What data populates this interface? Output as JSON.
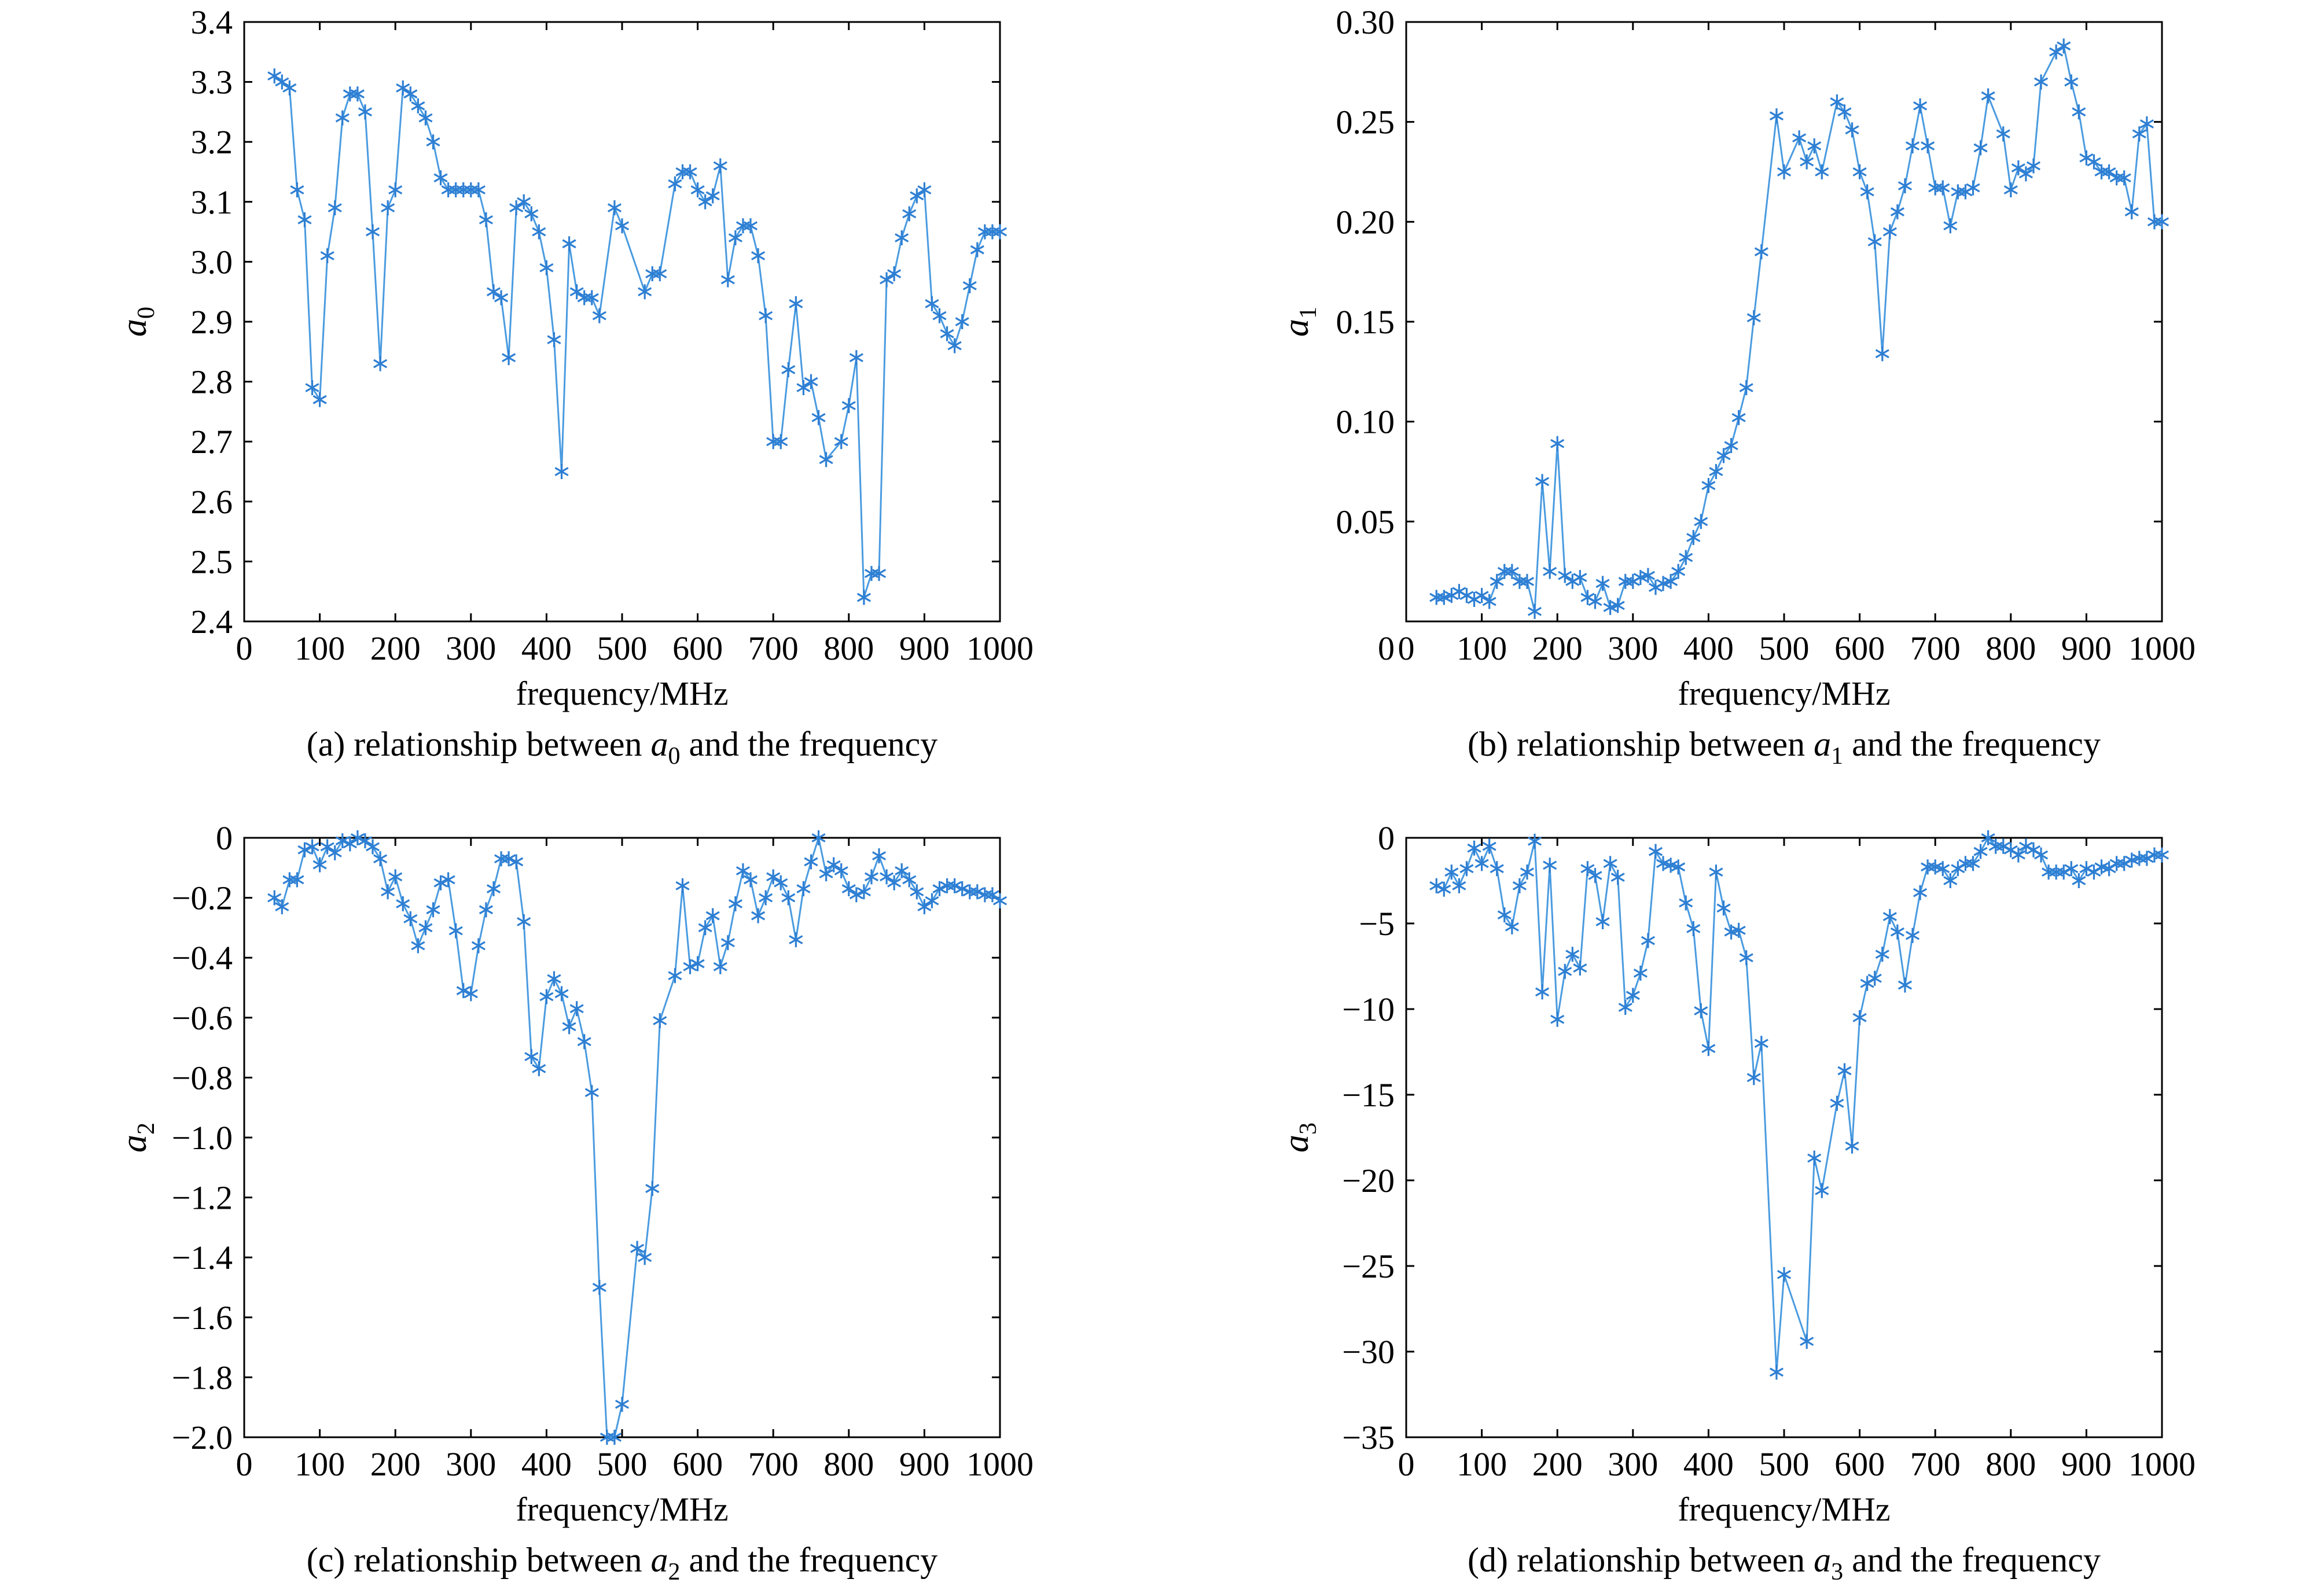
{
  "chart_data": [
    {
      "type": "line",
      "id": "a",
      "ylabel": {
        "base": "a",
        "sub": "0"
      },
      "xlabel": "frequency/MHz",
      "caption": {
        "pre": "(a) relationship between ",
        "sym": "a",
        "sub": "0",
        "post": " and the frequency"
      },
      "xlim": [
        0,
        1000
      ],
      "ylim": [
        2.4,
        3.4
      ],
      "xticks": [
        0,
        100,
        200,
        300,
        400,
        500,
        600,
        700,
        800,
        900,
        1000
      ],
      "yticks": [
        2.4,
        2.5,
        2.6,
        2.7,
        2.8,
        2.9,
        3.0,
        3.1,
        3.2,
        3.3,
        3.4
      ],
      "ytick_labels": [
        "2.4",
        "2.5",
        "2.6",
        "2.7",
        "2.8",
        "2.9",
        "3.0",
        "3.1",
        "3.2",
        "3.3",
        "3.4"
      ],
      "marker": "asterisk",
      "color": "#4a9be0",
      "x": [
        40,
        50,
        60,
        70,
        80,
        90,
        100,
        110,
        120,
        130,
        140,
        150,
        160,
        170,
        180,
        190,
        200,
        210,
        220,
        230,
        240,
        250,
        260,
        270,
        280,
        290,
        300,
        310,
        320,
        330,
        340,
        350,
        360,
        370,
        380,
        390,
        400,
        410,
        420,
        430,
        440,
        450,
        460,
        470,
        490,
        500,
        530,
        540,
        550,
        570,
        580,
        590,
        600,
        610,
        620,
        630,
        640,
        650,
        660,
        670,
        680,
        690,
        700,
        710,
        720,
        730,
        740,
        750,
        760,
        770,
        790,
        800,
        810,
        820,
        830,
        840,
        850,
        860,
        870,
        880,
        890,
        900,
        910,
        920,
        930,
        940,
        950,
        960,
        970,
        980,
        990,
        1000
      ],
      "y": [
        3.31,
        3.3,
        3.29,
        3.12,
        3.07,
        2.79,
        2.77,
        3.01,
        3.09,
        3.24,
        3.28,
        3.28,
        3.25,
        3.05,
        2.83,
        3.09,
        3.12,
        3.29,
        3.28,
        3.26,
        3.24,
        3.2,
        3.14,
        3.12,
        3.12,
        3.12,
        3.12,
        3.12,
        3.07,
        2.95,
        2.94,
        2.84,
        3.09,
        3.1,
        3.08,
        3.05,
        2.99,
        2.87,
        2.65,
        3.03,
        2.95,
        2.94,
        2.94,
        2.91,
        3.09,
        3.06,
        2.95,
        2.98,
        2.98,
        3.13,
        3.15,
        3.15,
        3.12,
        3.1,
        3.11,
        3.16,
        2.97,
        3.04,
        3.06,
        3.06,
        3.01,
        2.91,
        2.7,
        2.7,
        2.82,
        2.93,
        2.79,
        2.8,
        2.74,
        2.67,
        2.7,
        2.76,
        2.84,
        2.44,
        2.48,
        2.48,
        2.97,
        2.98,
        3.04,
        3.08,
        3.11,
        3.12,
        2.93,
        2.91,
        2.88,
        2.86,
        2.9,
        2.96,
        3.02,
        3.05,
        3.05,
        3.05
      ]
    },
    {
      "type": "line",
      "id": "b",
      "ylabel": {
        "base": "a",
        "sub": "1"
      },
      "xlabel": "frequency/MHz",
      "caption": {
        "pre": "(b) relationship between ",
        "sym": "a",
        "sub": "1",
        "post": " and the frequency"
      },
      "xlim": [
        0,
        1000
      ],
      "ylim": [
        0,
        0.3
      ],
      "xticks": [
        0,
        100,
        200,
        300,
        400,
        500,
        600,
        700,
        800,
        900,
        1000
      ],
      "yticks": [
        0.05,
        0.1,
        0.15,
        0.2,
        0.25,
        0.3
      ],
      "ytick_labels": [
        "0.05",
        "0.10",
        "0.15",
        "0.20",
        "0.25",
        "0.30"
      ],
      "marker": "asterisk",
      "color": "#4a9be0",
      "x": [
        40,
        50,
        60,
        70,
        80,
        90,
        100,
        110,
        120,
        130,
        140,
        150,
        160,
        170,
        180,
        190,
        200,
        210,
        220,
        230,
        240,
        250,
        260,
        270,
        280,
        290,
        300,
        310,
        320,
        330,
        340,
        350,
        360,
        370,
        380,
        390,
        400,
        410,
        420,
        430,
        440,
        450,
        460,
        470,
        490,
        500,
        520,
        530,
        540,
        550,
        570,
        580,
        590,
        600,
        610,
        620,
        630,
        640,
        650,
        660,
        670,
        680,
        690,
        700,
        710,
        720,
        730,
        740,
        750,
        760,
        770,
        790,
        800,
        810,
        820,
        830,
        840,
        860,
        870,
        880,
        890,
        900,
        910,
        920,
        930,
        940,
        950,
        960,
        970,
        980,
        990,
        1000
      ],
      "y": [
        0.012,
        0.012,
        0.013,
        0.015,
        0.013,
        0.011,
        0.013,
        0.01,
        0.02,
        0.025,
        0.025,
        0.02,
        0.02,
        0.005,
        0.07,
        0.025,
        0.089,
        0.023,
        0.02,
        0.022,
        0.012,
        0.01,
        0.019,
        0.007,
        0.008,
        0.02,
        0.02,
        0.022,
        0.023,
        0.017,
        0.019,
        0.02,
        0.025,
        0.032,
        0.042,
        0.05,
        0.068,
        0.075,
        0.083,
        0.088,
        0.102,
        0.117,
        0.152,
        0.185,
        0.253,
        0.225,
        0.242,
        0.23,
        0.238,
        0.225,
        0.26,
        0.255,
        0.246,
        0.225,
        0.215,
        0.19,
        0.134,
        0.195,
        0.205,
        0.218,
        0.238,
        0.258,
        0.238,
        0.217,
        0.217,
        0.198,
        0.215,
        0.215,
        0.217,
        0.237,
        0.263,
        0.244,
        0.216,
        0.227,
        0.224,
        0.228,
        0.27,
        0.285,
        0.288,
        0.27,
        0.255,
        0.232,
        0.23,
        0.225,
        0.225,
        0.222,
        0.222,
        0.205,
        0.244,
        0.249,
        0.2,
        0.2
      ]
    },
    {
      "type": "line",
      "id": "c",
      "ylabel": {
        "base": "a",
        "sub": "2"
      },
      "xlabel": "frequency/MHz",
      "caption": {
        "pre": "(c) relationship between ",
        "sym": "a",
        "sub": "2",
        "post": " and the frequency"
      },
      "xlim": [
        0,
        1000
      ],
      "ylim": [
        -2.0,
        0
      ],
      "xticks": [
        0,
        100,
        200,
        300,
        400,
        500,
        600,
        700,
        800,
        900,
        1000
      ],
      "yticks": [
        -2.0,
        -1.8,
        -1.6,
        -1.4,
        -1.2,
        -1.0,
        -0.8,
        -0.6,
        -0.4,
        -0.2,
        0
      ],
      "ytick_labels": [
        "−2.0",
        "−1.8",
        "−1.6",
        "−1.4",
        "−1.2",
        "−1.0",
        "−0.8",
        "−0.6",
        "−0.4",
        "−0.2",
        "0"
      ],
      "marker": "asterisk",
      "color": "#4a9be0",
      "x": [
        40,
        50,
        60,
        70,
        80,
        90,
        100,
        110,
        120,
        130,
        140,
        150,
        160,
        170,
        180,
        190,
        200,
        210,
        220,
        230,
        240,
        250,
        260,
        270,
        280,
        290,
        300,
        310,
        320,
        330,
        340,
        350,
        360,
        370,
        380,
        390,
        400,
        410,
        420,
        430,
        440,
        450,
        460,
        470,
        480,
        490,
        500,
        520,
        530,
        540,
        550,
        570,
        580,
        590,
        600,
        610,
        620,
        630,
        640,
        650,
        660,
        670,
        680,
        690,
        700,
        710,
        720,
        730,
        740,
        750,
        760,
        770,
        780,
        790,
        800,
        810,
        820,
        830,
        840,
        850,
        860,
        870,
        880,
        890,
        900,
        910,
        920,
        930,
        940,
        950,
        960,
        970,
        980,
        990,
        1000
      ],
      "y": [
        -0.2,
        -0.23,
        -0.14,
        -0.14,
        -0.04,
        -0.03,
        -0.09,
        -0.03,
        -0.05,
        -0.01,
        -0.02,
        0,
        -0.01,
        -0.03,
        -0.07,
        -0.18,
        -0.13,
        -0.22,
        -0.27,
        -0.36,
        -0.3,
        -0.24,
        -0.15,
        -0.14,
        -0.31,
        -0.51,
        -0.52,
        -0.36,
        -0.24,
        -0.17,
        -0.07,
        -0.07,
        -0.08,
        -0.28,
        -0.73,
        -0.77,
        -0.53,
        -0.47,
        -0.52,
        -0.63,
        -0.57,
        -0.68,
        -0.85,
        -1.5,
        -2.0,
        -2.0,
        -1.89,
        -1.37,
        -1.4,
        -1.17,
        -0.61,
        -0.46,
        -0.16,
        -0.43,
        -0.42,
        -0.3,
        -0.26,
        -0.43,
        -0.35,
        -0.22,
        -0.11,
        -0.14,
        -0.26,
        -0.2,
        -0.13,
        -0.15,
        -0.2,
        -0.34,
        -0.17,
        -0.08,
        0,
        -0.12,
        -0.09,
        -0.11,
        -0.17,
        -0.19,
        -0.18,
        -0.13,
        -0.06,
        -0.13,
        -0.15,
        -0.11,
        -0.14,
        -0.18,
        -0.23,
        -0.21,
        -0.17,
        -0.16,
        -0.16,
        -0.17,
        -0.18,
        -0.18,
        -0.19,
        -0.19,
        -0.21
      ]
    },
    {
      "type": "line",
      "id": "d",
      "ylabel": {
        "base": "a",
        "sub": "3"
      },
      "xlabel": "frequency/MHz",
      "caption": {
        "pre": "(d) relationship between ",
        "sym": "a",
        "sub": "3",
        "post": " and the frequency"
      },
      "xlim": [
        0,
        1000
      ],
      "ylim": [
        -35,
        0
      ],
      "xticks": [
        0,
        100,
        200,
        300,
        400,
        500,
        600,
        700,
        800,
        900,
        1000
      ],
      "yticks": [
        -35,
        -30,
        -25,
        -20,
        -15,
        -10,
        -5,
        0
      ],
      "ytick_labels": [
        "−35",
        "−30",
        "−25",
        "−20",
        "−15",
        "−10",
        "−5",
        "0"
      ],
      "marker": "asterisk",
      "color": "#4a9be0",
      "x": [
        40,
        50,
        60,
        70,
        80,
        90,
        100,
        110,
        120,
        130,
        140,
        150,
        160,
        170,
        180,
        190,
        200,
        210,
        220,
        230,
        240,
        250,
        260,
        270,
        280,
        290,
        300,
        310,
        320,
        330,
        340,
        350,
        360,
        370,
        380,
        390,
        400,
        410,
        420,
        430,
        440,
        450,
        460,
        470,
        490,
        500,
        530,
        540,
        550,
        570,
        580,
        590,
        600,
        610,
        620,
        630,
        640,
        650,
        660,
        670,
        680,
        690,
        700,
        710,
        720,
        730,
        740,
        750,
        760,
        770,
        780,
        790,
        800,
        810,
        820,
        830,
        840,
        850,
        860,
        870,
        880,
        890,
        900,
        910,
        920,
        930,
        940,
        950,
        960,
        970,
        980,
        990,
        1000
      ],
      "y": [
        -2.8,
        -3.0,
        -2.0,
        -2.8,
        -1.8,
        -0.6,
        -1.5,
        -0.5,
        -1.8,
        -4.5,
        -5.2,
        -2.8,
        -2.0,
        -0.2,
        -9.0,
        -1.6,
        -10.6,
        -7.8,
        -6.8,
        -7.6,
        -1.8,
        -2.2,
        -4.9,
        -1.5,
        -2.3,
        -9.9,
        -9.2,
        -7.9,
        -6.0,
        -0.8,
        -1.5,
        -1.6,
        -1.7,
        -3.8,
        -5.3,
        -10.1,
        -12.3,
        -2.0,
        -4.1,
        -5.5,
        -5.4,
        -7.0,
        -14.0,
        -12.0,
        -31.2,
        -25.5,
        -29.4,
        -18.7,
        -20.6,
        -15.5,
        -13.6,
        -18.0,
        -10.5,
        -8.5,
        -8.2,
        -6.8,
        -4.6,
        -5.5,
        -8.6,
        -5.7,
        -3.2,
        -1.7,
        -1.7,
        -1.8,
        -2.5,
        -1.8,
        -1.5,
        -1.5,
        -0.8,
        0,
        -0.5,
        -0.5,
        -0.7,
        -1.0,
        -0.5,
        -0.7,
        -1.0,
        -2.0,
        -2.0,
        -2.0,
        -1.8,
        -2.5,
        -1.8,
        -2.0,
        -1.7,
        -1.8,
        -1.5,
        -1.5,
        -1.3,
        -1.2,
        -1.2,
        -1.0,
        -1.0
      ]
    }
  ]
}
